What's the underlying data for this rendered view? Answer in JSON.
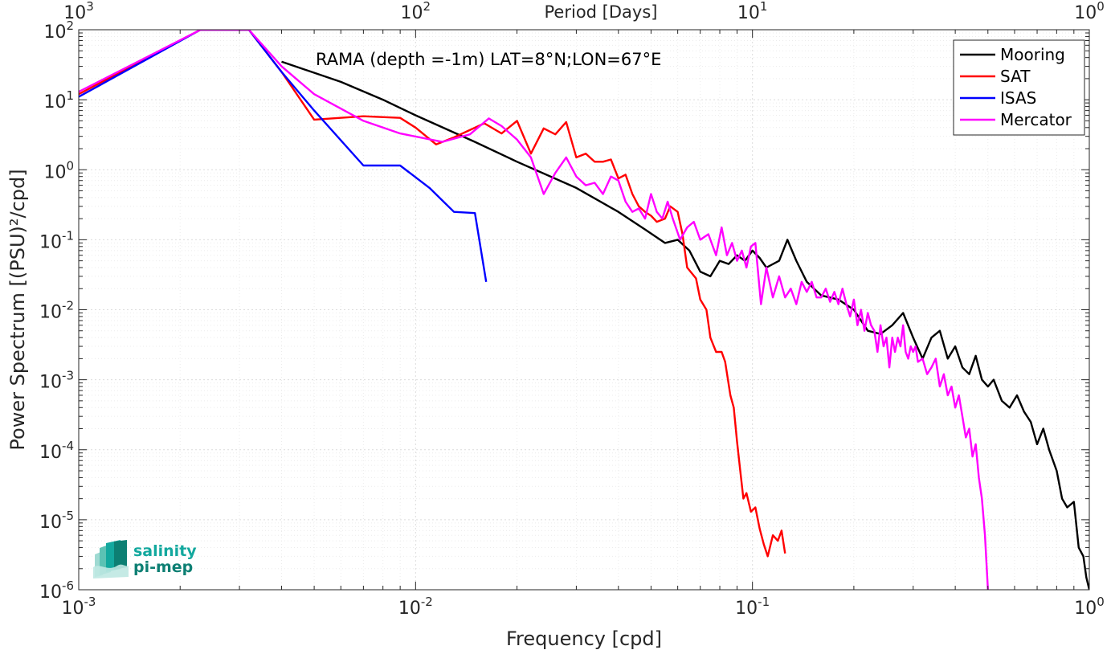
{
  "chart_data": {
    "type": "line",
    "xscale": "log",
    "yscale": "log",
    "xlim": [
      0.001,
      1
    ],
    "ylim": [
      1e-06,
      100
    ],
    "grid": true,
    "xlabel": "Frequency [cpd]",
    "ylabel": "Power Spectrum [(PSU)²/cpd]",
    "x2label": "Period [Days]",
    "annotation": "RAMA (depth =-1m) LAT=8°N;LON=67°E",
    "legend_position": "top-right",
    "x_ticks": [
      {
        "value": 0.001,
        "base": "10",
        "exp": "-3"
      },
      {
        "value": 0.01,
        "base": "10",
        "exp": "-2"
      },
      {
        "value": 0.1,
        "base": "10",
        "exp": "-1"
      },
      {
        "value": 1,
        "base": "10",
        "exp": "0"
      }
    ],
    "x2_ticks": [
      {
        "value": 0.001,
        "base": "10",
        "exp": "3"
      },
      {
        "value": 0.01,
        "base": "10",
        "exp": "2"
      },
      {
        "value": 0.1,
        "base": "10",
        "exp": "1"
      },
      {
        "value": 1,
        "base": "10",
        "exp": "0"
      }
    ],
    "y_ticks": [
      {
        "value": 100,
        "base": "10",
        "exp": "2"
      },
      {
        "value": 10,
        "base": "10",
        "exp": "1"
      },
      {
        "value": 1,
        "base": "10",
        "exp": "0"
      },
      {
        "value": 0.1,
        "base": "10",
        "exp": "-1"
      },
      {
        "value": 0.01,
        "base": "10",
        "exp": "-2"
      },
      {
        "value": 0.001,
        "base": "10",
        "exp": "-3"
      },
      {
        "value": 0.0001,
        "base": "10",
        "exp": "-4"
      },
      {
        "value": 1e-05,
        "base": "10",
        "exp": "-5"
      },
      {
        "value": 1e-06,
        "base": "10",
        "exp": "-6"
      }
    ],
    "series": [
      {
        "name": "Mooring",
        "color": "#000000",
        "points": [
          [
            0.004,
            35
          ],
          [
            0.006,
            18
          ],
          [
            0.008,
            10
          ],
          [
            0.01,
            6
          ],
          [
            0.015,
            2.5
          ],
          [
            0.02,
            1.3
          ],
          [
            0.03,
            0.55
          ],
          [
            0.04,
            0.25
          ],
          [
            0.048,
            0.14
          ],
          [
            0.055,
            0.09
          ],
          [
            0.06,
            0.1
          ],
          [
            0.065,
            0.07
          ],
          [
            0.07,
            0.035
          ],
          [
            0.075,
            0.03
          ],
          [
            0.08,
            0.05
          ],
          [
            0.085,
            0.045
          ],
          [
            0.09,
            0.06
          ],
          [
            0.095,
            0.05
          ],
          [
            0.1,
            0.07
          ],
          [
            0.105,
            0.055
          ],
          [
            0.11,
            0.04
          ],
          [
            0.12,
            0.05
          ],
          [
            0.127,
            0.1
          ],
          [
            0.135,
            0.05
          ],
          [
            0.145,
            0.025
          ],
          [
            0.16,
            0.016
          ],
          [
            0.18,
            0.014
          ],
          [
            0.2,
            0.01
          ],
          [
            0.22,
            0.005
          ],
          [
            0.24,
            0.0045
          ],
          [
            0.26,
            0.006
          ],
          [
            0.28,
            0.009
          ],
          [
            0.3,
            0.004
          ],
          [
            0.32,
            0.002
          ],
          [
            0.34,
            0.004
          ],
          [
            0.36,
            0.005
          ],
          [
            0.38,
            0.002
          ],
          [
            0.4,
            0.003
          ],
          [
            0.42,
            0.0015
          ],
          [
            0.44,
            0.0012
          ],
          [
            0.46,
            0.0022
          ],
          [
            0.48,
            0.001
          ],
          [
            0.5,
            0.0008
          ],
          [
            0.52,
            0.001
          ],
          [
            0.55,
            0.0005
          ],
          [
            0.58,
            0.0004
          ],
          [
            0.61,
            0.0006
          ],
          [
            0.64,
            0.00035
          ],
          [
            0.67,
            0.00025
          ],
          [
            0.7,
            0.00012
          ],
          [
            0.73,
            0.0002
          ],
          [
            0.76,
            0.0001
          ],
          [
            0.8,
            5e-05
          ],
          [
            0.83,
            2e-05
          ],
          [
            0.86,
            1.5e-05
          ],
          [
            0.9,
            1.8e-05
          ],
          [
            0.93,
            4e-06
          ],
          [
            0.96,
            3e-06
          ],
          [
            0.98,
            1.5e-06
          ],
          [
            1.0,
            1e-06
          ]
        ]
      },
      {
        "name": "SAT",
        "color": "#ff0000",
        "points": [
          [
            0.001,
            12
          ],
          [
            0.0023,
            100
          ],
          [
            0.0032,
            100
          ],
          [
            0.004,
            25
          ],
          [
            0.005,
            5.2
          ],
          [
            0.007,
            5.8
          ],
          [
            0.009,
            5.5
          ],
          [
            0.01,
            4
          ],
          [
            0.0115,
            2.3
          ],
          [
            0.013,
            2.9
          ],
          [
            0.016,
            4.6
          ],
          [
            0.018,
            3.3
          ],
          [
            0.02,
            5
          ],
          [
            0.022,
            1.7
          ],
          [
            0.024,
            3.9
          ],
          [
            0.026,
            3.2
          ],
          [
            0.028,
            4.8
          ],
          [
            0.03,
            1.5
          ],
          [
            0.032,
            1.7
          ],
          [
            0.034,
            1.3
          ],
          [
            0.036,
            1.3
          ],
          [
            0.038,
            1.4
          ],
          [
            0.04,
            0.75
          ],
          [
            0.042,
            0.85
          ],
          [
            0.044,
            0.45
          ],
          [
            0.046,
            0.3
          ],
          [
            0.048,
            0.25
          ],
          [
            0.05,
            0.22
          ],
          [
            0.052,
            0.18
          ],
          [
            0.055,
            0.2
          ],
          [
            0.057,
            0.3
          ],
          [
            0.06,
            0.25
          ],
          [
            0.062,
            0.12
          ],
          [
            0.064,
            0.04
          ],
          [
            0.068,
            0.028
          ],
          [
            0.07,
            0.014
          ],
          [
            0.073,
            0.01
          ],
          [
            0.075,
            0.004
          ],
          [
            0.078,
            0.0025
          ],
          [
            0.081,
            0.0025
          ],
          [
            0.083,
            0.0018
          ],
          [
            0.086,
            0.0006
          ],
          [
            0.088,
            0.0004
          ],
          [
            0.09,
            0.00013
          ],
          [
            0.092,
            5e-05
          ],
          [
            0.094,
            2e-05
          ],
          [
            0.096,
            2.4e-05
          ],
          [
            0.099,
            1.3e-05
          ],
          [
            0.102,
            1.5e-05
          ],
          [
            0.105,
            7.5e-06
          ],
          [
            0.108,
            4.5e-06
          ],
          [
            0.111,
            3e-06
          ],
          [
            0.115,
            6e-06
          ],
          [
            0.119,
            5e-06
          ],
          [
            0.122,
            7e-06
          ],
          [
            0.125,
            3.3e-06
          ]
        ]
      },
      {
        "name": "ISAS",
        "color": "#0000ff",
        "points": [
          [
            0.001,
            11
          ],
          [
            0.0023,
            100
          ],
          [
            0.0032,
            100
          ],
          [
            0.004,
            25
          ],
          [
            0.005,
            7
          ],
          [
            0.007,
            1.15
          ],
          [
            0.009,
            1.15
          ],
          [
            0.011,
            0.55
          ],
          [
            0.013,
            0.25
          ],
          [
            0.015,
            0.24
          ],
          [
            0.0162,
            0.025
          ]
        ]
      },
      {
        "name": "Mercator",
        "color": "#ff00ff",
        "points": [
          [
            0.001,
            13
          ],
          [
            0.0023,
            100
          ],
          [
            0.0032,
            100
          ],
          [
            0.004,
            30
          ],
          [
            0.005,
            12
          ],
          [
            0.007,
            5
          ],
          [
            0.009,
            3.3
          ],
          [
            0.012,
            2.5
          ],
          [
            0.0145,
            3.2
          ],
          [
            0.0165,
            5.4
          ],
          [
            0.018,
            4.2
          ],
          [
            0.02,
            2.7
          ],
          [
            0.022,
            1.5
          ],
          [
            0.024,
            0.45
          ],
          [
            0.026,
            0.9
          ],
          [
            0.028,
            1.5
          ],
          [
            0.03,
            0.8
          ],
          [
            0.032,
            0.6
          ],
          [
            0.034,
            0.65
          ],
          [
            0.036,
            0.45
          ],
          [
            0.038,
            0.8
          ],
          [
            0.04,
            0.7
          ],
          [
            0.042,
            0.35
          ],
          [
            0.044,
            0.25
          ],
          [
            0.046,
            0.28
          ],
          [
            0.048,
            0.2
          ],
          [
            0.05,
            0.45
          ],
          [
            0.052,
            0.25
          ],
          [
            0.054,
            0.2
          ],
          [
            0.056,
            0.35
          ],
          [
            0.058,
            0.2
          ],
          [
            0.061,
            0.1
          ],
          [
            0.064,
            0.15
          ],
          [
            0.067,
            0.18
          ],
          [
            0.07,
            0.1
          ],
          [
            0.074,
            0.12
          ],
          [
            0.078,
            0.06
          ],
          [
            0.081,
            0.15
          ],
          [
            0.084,
            0.06
          ],
          [
            0.087,
            0.09
          ],
          [
            0.09,
            0.05
          ],
          [
            0.093,
            0.07
          ],
          [
            0.096,
            0.04
          ],
          [
            0.099,
            0.08
          ],
          [
            0.102,
            0.09
          ],
          [
            0.106,
            0.012
          ],
          [
            0.11,
            0.04
          ],
          [
            0.115,
            0.015
          ],
          [
            0.12,
            0.03
          ],
          [
            0.125,
            0.015
          ],
          [
            0.13,
            0.02
          ],
          [
            0.135,
            0.012
          ],
          [
            0.14,
            0.025
          ],
          [
            0.145,
            0.018
          ],
          [
            0.15,
            0.025
          ],
          [
            0.155,
            0.015
          ],
          [
            0.16,
            0.015
          ],
          [
            0.165,
            0.02
          ],
          [
            0.17,
            0.013
          ],
          [
            0.175,
            0.018
          ],
          [
            0.18,
            0.012
          ],
          [
            0.185,
            0.02
          ],
          [
            0.19,
            0.012
          ],
          [
            0.195,
            0.008
          ],
          [
            0.2,
            0.014
          ],
          [
            0.205,
            0.006
          ],
          [
            0.21,
            0.01
          ],
          [
            0.215,
            0.005
          ],
          [
            0.22,
            0.009
          ],
          [
            0.225,
            0.006
          ],
          [
            0.23,
            0.005
          ],
          [
            0.235,
            0.0025
          ],
          [
            0.24,
            0.006
          ],
          [
            0.245,
            0.003
          ],
          [
            0.25,
            0.004
          ],
          [
            0.255,
            0.0015
          ],
          [
            0.26,
            0.004
          ],
          [
            0.265,
            0.0025
          ],
          [
            0.27,
            0.004
          ],
          [
            0.275,
            0.003
          ],
          [
            0.28,
            0.006
          ],
          [
            0.285,
            0.0025
          ],
          [
            0.29,
            0.002
          ],
          [
            0.295,
            0.003
          ],
          [
            0.3,
            0.0025
          ],
          [
            0.305,
            0.003
          ],
          [
            0.31,
            0.0018
          ],
          [
            0.32,
            0.002
          ],
          [
            0.33,
            0.0012
          ],
          [
            0.34,
            0.0015
          ],
          [
            0.35,
            0.002
          ],
          [
            0.36,
            0.0008
          ],
          [
            0.37,
            0.0012
          ],
          [
            0.38,
            0.0006
          ],
          [
            0.39,
            0.0008
          ],
          [
            0.4,
            0.0004
          ],
          [
            0.41,
            0.0006
          ],
          [
            0.42,
            0.0003
          ],
          [
            0.43,
            0.00015
          ],
          [
            0.44,
            0.0002
          ],
          [
            0.45,
            8e-05
          ],
          [
            0.46,
            0.00012
          ],
          [
            0.47,
            4e-05
          ],
          [
            0.48,
            2e-05
          ],
          [
            0.49,
            6e-06
          ],
          [
            0.5,
            1e-06
          ]
        ]
      }
    ]
  },
  "logo": {
    "line1": "salinity",
    "line2": "pi-mep",
    "color_main": "#13a89e",
    "color_dark": "#0d7f73"
  }
}
